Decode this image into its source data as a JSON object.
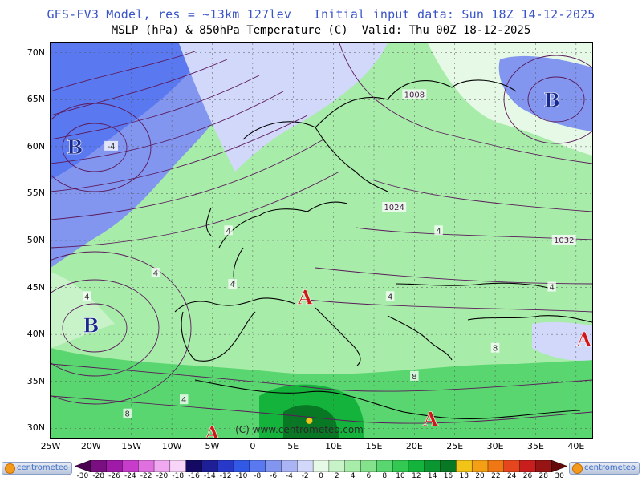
{
  "header": {
    "line1": "GFS-FV3 Model, res = ~13km 127lev   Initial input data: Sun 18Z 14-12-2025",
    "line2": "MSLP (hPa) & 850hPa Temperature (C)  Valid: Thu 00Z 18-12-2025"
  },
  "axes": {
    "lat_labels": [
      "70N",
      "65N",
      "60N",
      "55N",
      "50N",
      "45N",
      "40N",
      "35N",
      "30N"
    ],
    "lon_labels": [
      "25W",
      "20W",
      "15W",
      "10W",
      "5W",
      "0",
      "5E",
      "10E",
      "15E",
      "20E",
      "25E",
      "30E",
      "35E",
      "40E"
    ]
  },
  "map": {
    "extent": {
      "lon_min": -25,
      "lon_max": 42,
      "lat_min": 29,
      "lat_max": 71
    },
    "watermark": "(C) www.centrometeo.com",
    "pressure_centers": [
      {
        "symbol": "B",
        "meaning": "low",
        "lon": -22,
        "lat": 60,
        "color": "#1a2a8c"
      },
      {
        "symbol": "B",
        "meaning": "low",
        "lon": -20,
        "lat": 41,
        "color": "#1a2a8c"
      },
      {
        "symbol": "B",
        "meaning": "low",
        "lon": 37,
        "lat": 65,
        "color": "#1a2a8c"
      },
      {
        "symbol": "A",
        "meaning": "high",
        "lon": 6.5,
        "lat": 44,
        "color": "#d01818"
      },
      {
        "symbol": "A",
        "meaning": "high",
        "lon": -5,
        "lat": 29.5,
        "color": "#d01818"
      },
      {
        "symbol": "A",
        "meaning": "high",
        "lon": 22,
        "lat": 31,
        "color": "#d01818"
      },
      {
        "symbol": "A",
        "meaning": "high",
        "lon": 41,
        "lat": 39.5,
        "color": "#d01818"
      }
    ],
    "isobar_labels": [
      {
        "text": "1008",
        "lon": 20,
        "lat": 65.5
      },
      {
        "text": "1024",
        "lon": 17.5,
        "lat": 53.5
      },
      {
        "text": "1032",
        "lon": 38.5,
        "lat": 50
      }
    ],
    "temp_labels": [
      {
        "text": "-4",
        "lon": -17.5,
        "lat": 60
      },
      {
        "text": "4",
        "lon": -3,
        "lat": 51
      },
      {
        "text": "4",
        "lon": -12,
        "lat": 46.5
      },
      {
        "text": "4",
        "lon": -20.5,
        "lat": 44
      },
      {
        "text": "4",
        "lon": -2.5,
        "lat": 45.3
      },
      {
        "text": "4",
        "lon": 17,
        "lat": 44
      },
      {
        "text": "4",
        "lon": 23,
        "lat": 51
      },
      {
        "text": "4",
        "lon": 37,
        "lat": 45
      },
      {
        "text": "8",
        "lon": 20,
        "lat": 35.5
      },
      {
        "text": "8",
        "lon": 30,
        "lat": 38.5
      },
      {
        "text": "8",
        "lon": -15.5,
        "lat": 31.5
      },
      {
        "text": "4",
        "lon": -8.5,
        "lat": 33
      }
    ],
    "max_marker": {
      "lon": 7,
      "lat": 30.8,
      "color": "#f2c418"
    }
  },
  "colorbar": {
    "labels": [
      "-30",
      "-28",
      "-26",
      "-24",
      "-22",
      "-20",
      "-18",
      "-16",
      "-14",
      "-12",
      "-10",
      "-8",
      "-6",
      "-4",
      "-2",
      "0",
      "2",
      "4",
      "6",
      "8",
      "10",
      "12",
      "14",
      "16",
      "18",
      "20",
      "22",
      "24",
      "26",
      "28",
      "30"
    ],
    "colors": [
      "#4b0050",
      "#7a0f82",
      "#a01aa8",
      "#c83ccc",
      "#e070e0",
      "#f0a8f0",
      "#f8d4f8",
      "#140a64",
      "#1e1e96",
      "#2838c8",
      "#3258e6",
      "#5a78f0",
      "#8296f0",
      "#aab4f4",
      "#d2d8fa",
      "#e6f8e6",
      "#c8f2c8",
      "#a8ecaa",
      "#84e28c",
      "#5ad670",
      "#32c852",
      "#14b43c",
      "#0a9630",
      "#087824",
      "#f2c418",
      "#f5a014",
      "#f07814",
      "#e6461e",
      "#c81e1e",
      "#961414",
      "#640a0a"
    ],
    "logo_text": "centrometeo"
  }
}
